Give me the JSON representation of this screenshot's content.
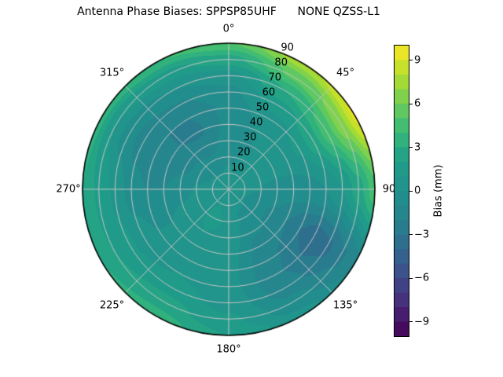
{
  "figure": {
    "title": "Antenna Phase Biases: SPPSP85UHF      NONE QZSS-L1"
  },
  "chart_data": {
    "type": "heatmap",
    "subtype": "polar_filled_contour",
    "title": "Antenna Phase Biases: SPPSP85UHF      NONE QZSS-L1",
    "angle_ticks": [
      {
        "deg": 0,
        "label": "0°"
      },
      {
        "deg": 45,
        "label": "45°"
      },
      {
        "deg": 90,
        "label": "90"
      },
      {
        "deg": 135,
        "label": "135°"
      },
      {
        "deg": 180,
        "label": "180°"
      },
      {
        "deg": 225,
        "label": "225°"
      },
      {
        "deg": 270,
        "label": "270°"
      },
      {
        "deg": 315,
        "label": "315°"
      }
    ],
    "radial_ticks": {
      "azimuth_deg": 22.5,
      "values": [
        10,
        20,
        30,
        40,
        50,
        60,
        70,
        80,
        90
      ],
      "max": 90
    },
    "azimuth_deg": [
      0,
      30,
      60,
      90,
      120,
      150,
      180,
      210,
      240,
      270,
      300,
      330
    ],
    "zenith_deg": [
      0,
      10,
      20,
      30,
      40,
      50,
      60,
      70,
      80,
      90
    ],
    "bias_mm": [
      [
        0.3,
        0.3,
        0.3,
        0.3,
        0.3,
        0.3,
        0.3,
        0.3,
        0.3,
        0.3,
        0.3,
        0.3
      ],
      [
        0.2,
        0.3,
        0.4,
        0.2,
        0.0,
        0.2,
        0.8,
        1.0,
        0.6,
        0.3,
        0.1,
        0.0
      ],
      [
        -0.2,
        0.1,
        0.3,
        0.0,
        -0.6,
        -0.4,
        0.9,
        1.2,
        0.6,
        0.1,
        -0.5,
        -0.8
      ],
      [
        -0.6,
        0.0,
        0.3,
        -0.2,
        -1.2,
        -0.9,
        0.7,
        1.0,
        0.4,
        -0.5,
        -1.3,
        -1.6
      ],
      [
        -0.8,
        0.2,
        0.6,
        -0.4,
        -2.0,
        -1.4,
        0.4,
        0.8,
        0.0,
        -1.0,
        -1.9,
        -2.2
      ],
      [
        -0.7,
        0.6,
        1.2,
        -0.4,
        -3.0,
        -1.8,
        0.3,
        0.8,
        0.0,
        -1.0,
        -2.0,
        -2.0
      ],
      [
        -0.3,
        1.6,
        2.6,
        0.0,
        -3.6,
        -1.9,
        0.3,
        1.0,
        0.5,
        -0.5,
        -1.5,
        -1.1
      ],
      [
        0.6,
        3.0,
        4.5,
        1.0,
        -3.2,
        -1.5,
        0.6,
        1.5,
        1.2,
        0.8,
        -0.6,
        0.0
      ],
      [
        2.6,
        5.2,
        6.6,
        2.6,
        -2.2,
        -0.6,
        1.2,
        2.5,
        2.0,
        1.8,
        1.0,
        1.6
      ],
      [
        5.0,
        7.6,
        9.2,
        4.6,
        -1.2,
        0.4,
        2.0,
        3.5,
        3.0,
        3.0,
        3.4,
        4.0
      ]
    ],
    "levels": {
      "min": -10,
      "max": 10,
      "step": 1
    },
    "colormap": {
      "name": "viridis",
      "stops": [
        [
          0.0,
          "#440154"
        ],
        [
          0.1,
          "#482878"
        ],
        [
          0.2,
          "#3e4a89"
        ],
        [
          0.3,
          "#31688e"
        ],
        [
          0.4,
          "#26828e"
        ],
        [
          0.5,
          "#21918c"
        ],
        [
          0.6,
          "#1f9e89"
        ],
        [
          0.7,
          "#35b779"
        ],
        [
          0.8,
          "#6ece58"
        ],
        [
          0.9,
          "#b5de2b"
        ],
        [
          1.0,
          "#fde725"
        ]
      ]
    },
    "grid_color": "#c6c6c6",
    "outline_color": "#000000",
    "colorbar": {
      "label": "Bias (mm)",
      "min": -10,
      "max": 10,
      "ticks": [
        {
          "value": 9,
          "label": "9"
        },
        {
          "value": 6,
          "label": "6"
        },
        {
          "value": 3,
          "label": "3"
        },
        {
          "value": 0,
          "label": "0"
        },
        {
          "value": -3,
          "label": "−3"
        },
        {
          "value": -6,
          "label": "−6"
        },
        {
          "value": -9,
          "label": "−9"
        }
      ]
    }
  }
}
